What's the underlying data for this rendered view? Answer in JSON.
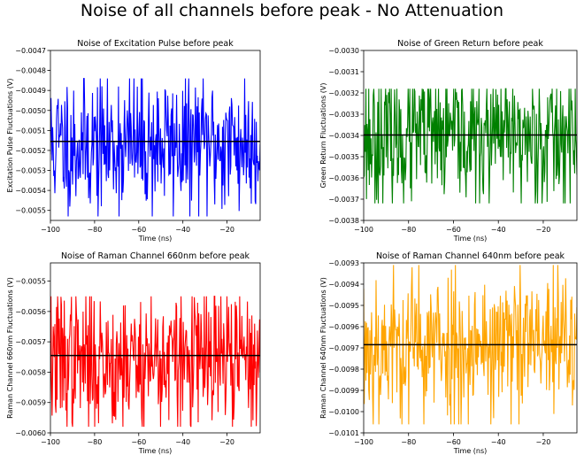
{
  "figure": {
    "suptitle": "Noise of all channels before peak - No Attenuation"
  },
  "chart_data": [
    {
      "type": "line",
      "title": "Noise of Excitation Pulse before peak",
      "xlabel": "Time (ns)",
      "ylabel": "Excitation Pulse Fluctuations (V)",
      "xlim": [
        -100,
        -5
      ],
      "ylim": [
        -0.00555,
        -0.0047
      ],
      "xticks": [
        -100,
        -80,
        -60,
        -40,
        -20
      ],
      "xtick_labels": [
        "−100",
        "−80",
        "−60",
        "−40",
        "−20"
      ],
      "yticks": [
        -0.0047,
        -0.0048,
        -0.0049,
        -0.005,
        -0.0051,
        -0.0052,
        -0.0053,
        -0.0054,
        -0.0055
      ],
      "ytick_labels": [
        "−0.0047",
        "−0.0048",
        "−0.0049",
        "−0.0050",
        "−0.0051",
        "−0.0052",
        "−0.0053",
        "−0.0054",
        "−0.0055"
      ],
      "mean": -0.005155,
      "noise": {
        "center": -0.00517,
        "std": 0.00018,
        "min": -0.00553,
        "max": -0.00484,
        "points": 380,
        "seed": 11
      },
      "series_color": "#0000ff",
      "mean_color": "#000000",
      "grid": false
    },
    {
      "type": "line",
      "title": "Noise of Green Return before peak",
      "xlabel": "Time (ns)",
      "ylabel": "Green Return Fluctuations (V)",
      "xlim": [
        -100,
        -5
      ],
      "ylim": [
        -0.0038,
        -0.003
      ],
      "xticks": [
        -100,
        -80,
        -60,
        -40,
        -20
      ],
      "xtick_labels": [
        "−100",
        "−80",
        "−60",
        "−40",
        "−20"
      ],
      "yticks": [
        -0.003,
        -0.0031,
        -0.0032,
        -0.0033,
        -0.0034,
        -0.0035,
        -0.0036,
        -0.0037,
        -0.0038
      ],
      "ytick_labels": [
        "−0.0030",
        "−0.0031",
        "−0.0032",
        "−0.0033",
        "−0.0034",
        "−0.0035",
        "−0.0036",
        "−0.0037",
        "−0.0038"
      ],
      "mean": -0.003398,
      "noise": {
        "center": -0.00341,
        "std": 0.00017,
        "min": -0.00372,
        "max": -0.00318,
        "points": 380,
        "seed": 23
      },
      "series_color": "#008000",
      "mean_color": "#000000",
      "grid": false
    },
    {
      "type": "line",
      "title": "Noise of Raman Channel 660nm before peak",
      "xlabel": "Time (ns)",
      "ylabel": "Raman Channel 660nm Fluctuations (V)",
      "xlim": [
        -100,
        -5
      ],
      "ylim": [
        -0.006,
        -0.00544
      ],
      "xticks": [
        -100,
        -80,
        -60,
        -40,
        -20
      ],
      "xtick_labels": [
        "−100",
        "−80",
        "−60",
        "−40",
        "−20"
      ],
      "yticks": [
        -0.0055,
        -0.0056,
        -0.0057,
        -0.0058,
        -0.0059,
        -0.006
      ],
      "ytick_labels": [
        "−0.0055",
        "−0.0056",
        "−0.0057",
        "−0.0058",
        "−0.0059",
        "−0.0060"
      ],
      "mean": -0.005745,
      "noise": {
        "center": -0.00576,
        "std": 0.00012,
        "min": -0.00598,
        "max": -0.00555,
        "points": 380,
        "seed": 37
      },
      "series_color": "#ff0000",
      "mean_color": "#000000",
      "grid": false
    },
    {
      "type": "line",
      "title": "Noise of Raman Channel 640nm before peak",
      "xlabel": "Time (ns)",
      "ylabel": "Raman Channel 640nm Fluctuations (V)",
      "xlim": [
        -100,
        -5
      ],
      "ylim": [
        -0.0101,
        -0.0093
      ],
      "xticks": [
        -100,
        -80,
        -60,
        -40,
        -20
      ],
      "xtick_labels": [
        "−100",
        "−80",
        "−60",
        "−40",
        "−20"
      ],
      "yticks": [
        -0.0093,
        -0.0094,
        -0.0095,
        -0.0096,
        -0.0097,
        -0.0098,
        -0.0099,
        -0.01,
        -0.0101
      ],
      "ytick_labels": [
        "−0.0093",
        "−0.0094",
        "−0.0095",
        "−0.0096",
        "−0.0097",
        "−0.0098",
        "−0.0099",
        "−0.0100",
        "−0.0101"
      ],
      "mean": -0.009685,
      "noise": {
        "center": -0.00969,
        "std": 0.00019,
        "min": -0.01006,
        "max": -0.00931,
        "points": 380,
        "seed": 53
      },
      "series_color": "#ffa500",
      "mean_color": "#000000",
      "grid": false
    }
  ]
}
